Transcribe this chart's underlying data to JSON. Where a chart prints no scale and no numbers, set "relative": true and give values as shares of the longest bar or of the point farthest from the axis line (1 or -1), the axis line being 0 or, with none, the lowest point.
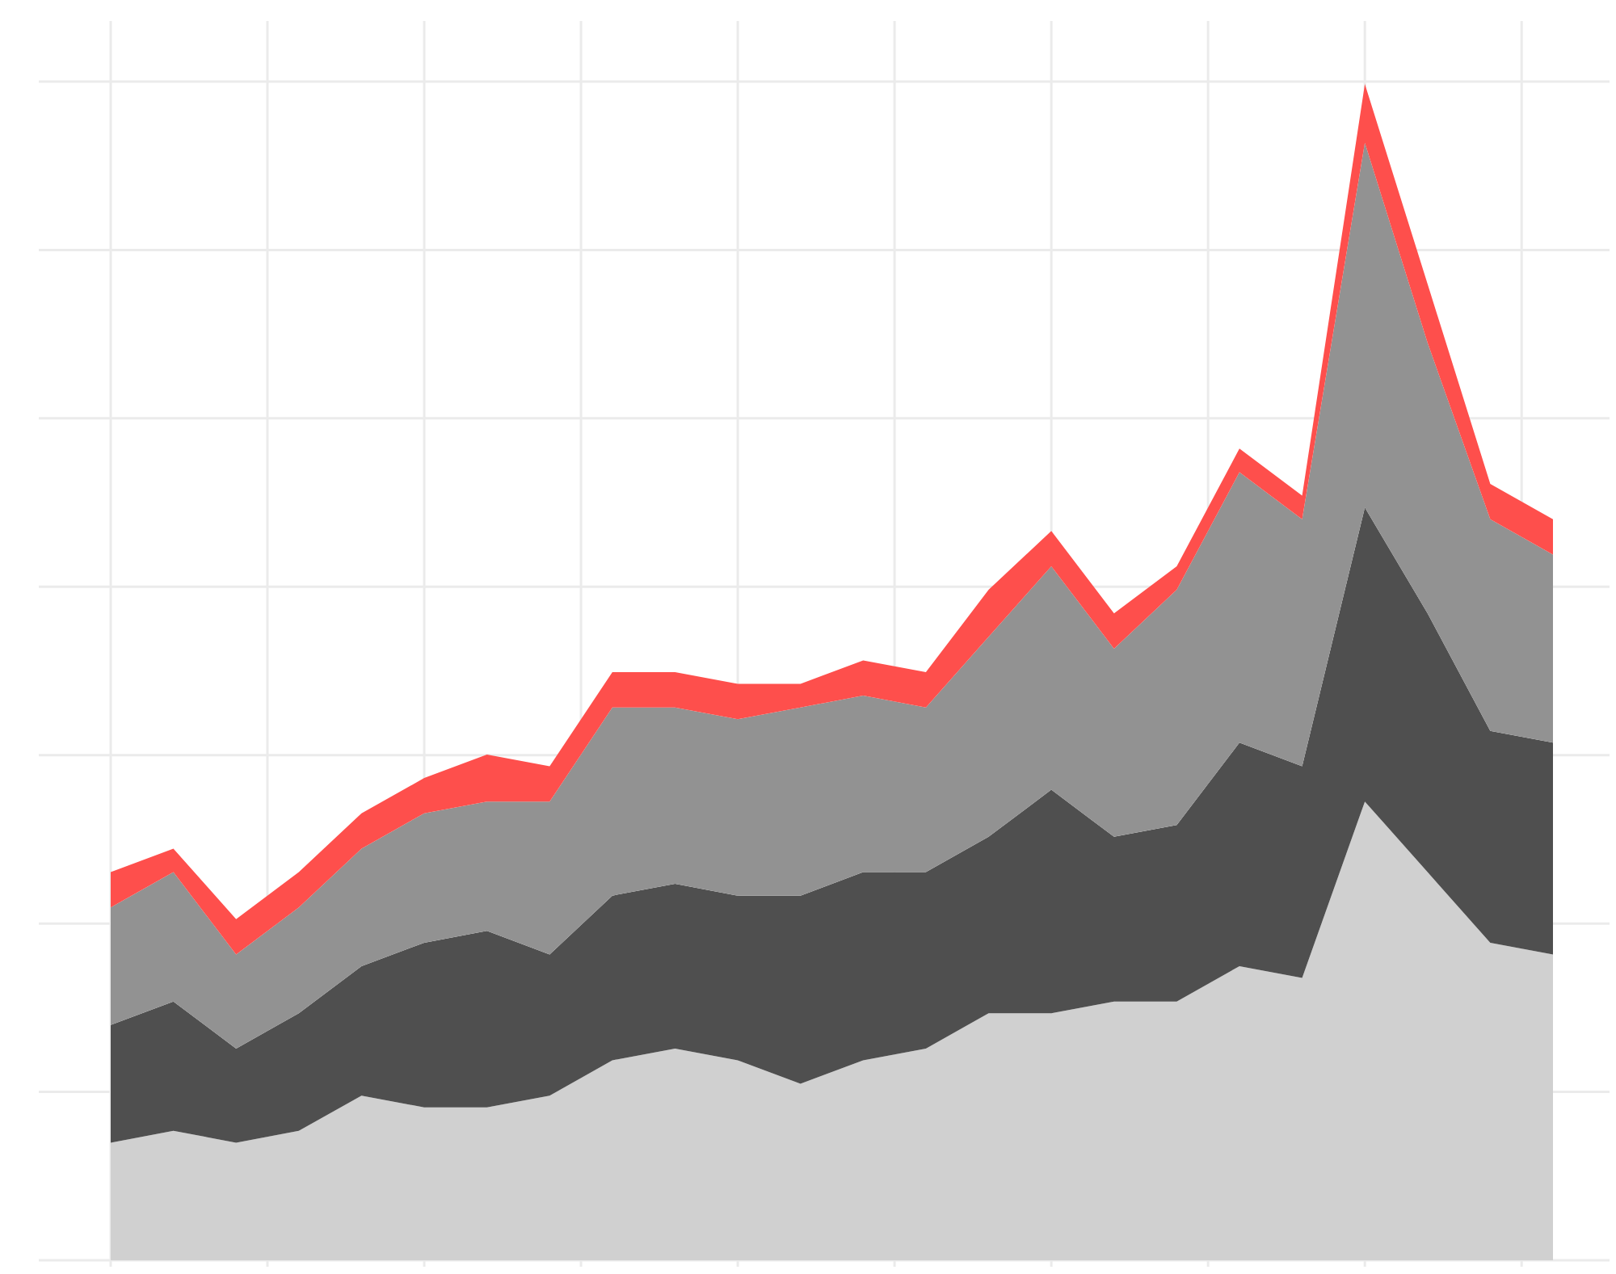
{
  "chart_data": {
    "type": "area",
    "stacked": true,
    "relative": true,
    "grid": true,
    "categories": [
      null,
      null,
      null,
      null,
      null,
      null,
      null,
      null,
      null,
      null,
      null,
      null,
      null,
      null,
      null,
      null,
      null,
      null,
      null,
      null,
      null,
      null,
      null,
      null
    ],
    "series": [
      {
        "color": "#d0d0d0",
        "values": [
          0.1,
          0.11,
          0.1,
          0.11,
          0.14,
          0.13,
          0.13,
          0.14,
          0.17,
          0.18,
          0.17,
          0.15,
          0.17,
          0.18,
          0.21,
          0.21,
          0.22,
          0.22,
          0.25,
          0.24,
          0.39,
          0.33,
          0.27,
          0.26
        ]
      },
      {
        "color": "#4f4f4f",
        "values": [
          0.1,
          0.11,
          0.08,
          0.1,
          0.11,
          0.14,
          0.15,
          0.12,
          0.14,
          0.14,
          0.14,
          0.16,
          0.16,
          0.15,
          0.15,
          0.19,
          0.14,
          0.15,
          0.19,
          0.18,
          0.25,
          0.22,
          0.18,
          0.18
        ]
      },
      {
        "color": "#929292",
        "values": [
          0.1,
          0.11,
          0.08,
          0.09,
          0.1,
          0.11,
          0.11,
          0.13,
          0.16,
          0.15,
          0.15,
          0.16,
          0.15,
          0.14,
          0.17,
          0.19,
          0.16,
          0.2,
          0.23,
          0.21,
          0.31,
          0.23,
          0.18,
          0.16
        ]
      },
      {
        "color": "#fe4f4c",
        "values": [
          0.03,
          0.02,
          0.03,
          0.03,
          0.03,
          0.03,
          0.04,
          0.03,
          0.03,
          0.03,
          0.03,
          0.02,
          0.03,
          0.03,
          0.04,
          0.03,
          0.03,
          0.02,
          0.02,
          0.02,
          0.05,
          0.05,
          0.03,
          0.03
        ]
      }
    ]
  }
}
